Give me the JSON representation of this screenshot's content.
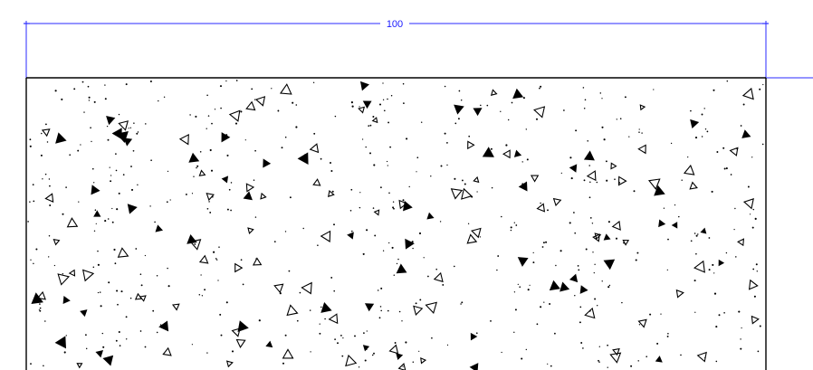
{
  "drawing": {
    "dimension": {
      "value_label": "100",
      "color": "#2a2aff"
    },
    "section": {
      "hatch": "concrete-aggregate",
      "edge_color": "#000000",
      "hatch_color": "#000000",
      "background": "#ffffff"
    }
  }
}
